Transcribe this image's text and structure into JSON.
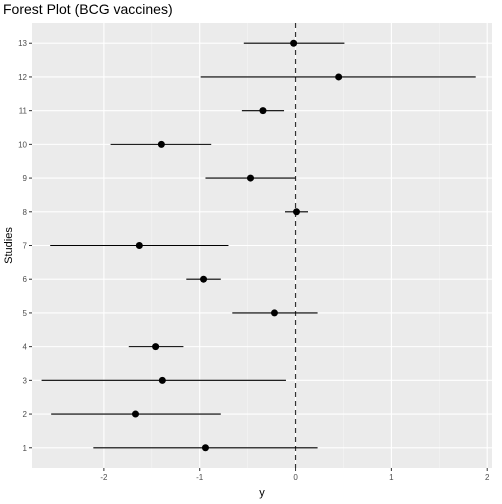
{
  "chart_data": {
    "type": "forest",
    "title": "Forest Plot (BCG vaccines)",
    "xlabel": "y",
    "ylabel": "Studies",
    "xlim": [
      -2.75,
      2.05
    ],
    "ylim": [
      0.4,
      13.6
    ],
    "x_ticks": [
      -2,
      -1,
      0,
      1,
      2
    ],
    "y_ticks": [
      1,
      2,
      3,
      4,
      5,
      6,
      7,
      8,
      9,
      10,
      11,
      12,
      13
    ],
    "reference_line": 0,
    "grid": true,
    "studies": [
      {
        "study": 1,
        "estimate": -0.94,
        "lower": -2.11,
        "upper": 0.23
      },
      {
        "study": 2,
        "estimate": -1.67,
        "lower": -2.55,
        "upper": -0.78
      },
      {
        "study": 3,
        "estimate": -1.39,
        "lower": -2.65,
        "upper": -0.1
      },
      {
        "study": 4,
        "estimate": -1.46,
        "lower": -1.74,
        "upper": -1.17
      },
      {
        "study": 5,
        "estimate": -0.22,
        "lower": -0.66,
        "upper": 0.23
      },
      {
        "study": 6,
        "estimate": -0.96,
        "lower": -1.14,
        "upper": -0.78
      },
      {
        "study": 7,
        "estimate": -1.63,
        "lower": -2.56,
        "upper": -0.7
      },
      {
        "study": 8,
        "estimate": 0.01,
        "lower": -0.11,
        "upper": 0.13
      },
      {
        "study": 9,
        "estimate": -0.47,
        "lower": -0.94,
        "upper": 0.0
      },
      {
        "study": 10,
        "estimate": -1.4,
        "lower": -1.93,
        "upper": -0.88
      },
      {
        "study": 11,
        "estimate": -0.34,
        "lower": -0.56,
        "upper": -0.12
      },
      {
        "study": 12,
        "estimate": 0.45,
        "lower": -0.99,
        "upper": 1.88
      },
      {
        "study": 13,
        "estimate": -0.02,
        "lower": -0.54,
        "upper": 0.51
      }
    ],
    "colors": {
      "panel": "#ebebeb",
      "grid_major": "#ffffff",
      "point": "#000000",
      "line": "#000000",
      "reference": "#333333"
    }
  }
}
